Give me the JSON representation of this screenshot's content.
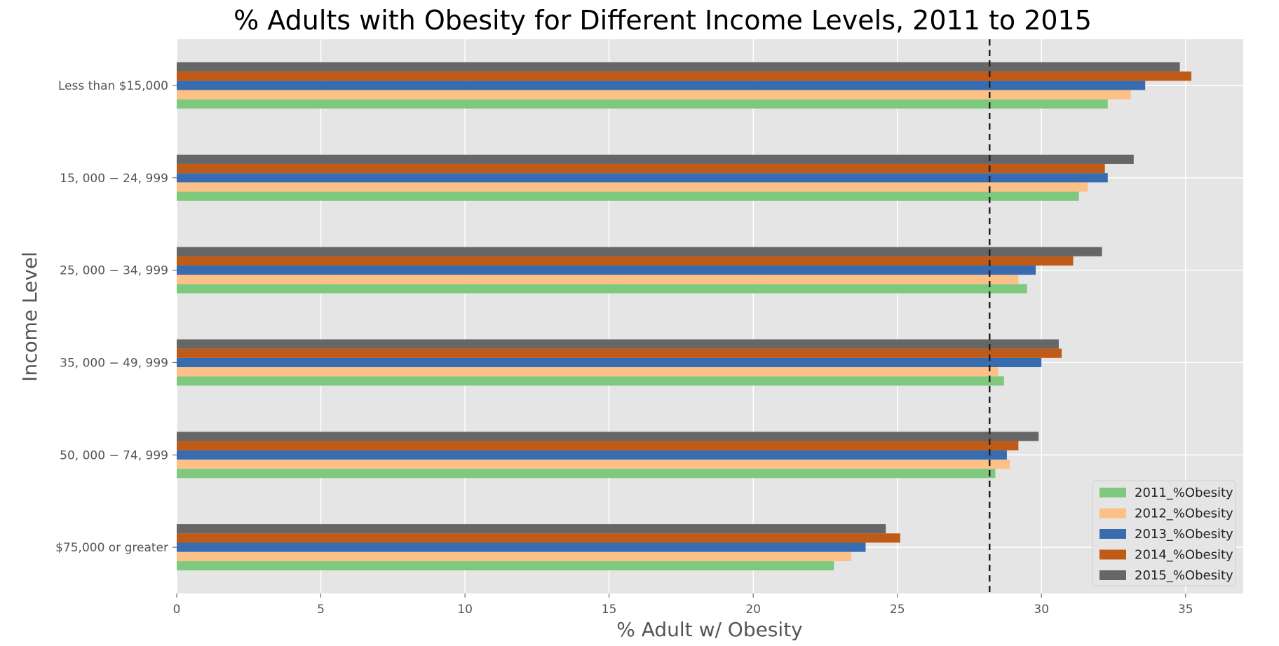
{
  "chart_data": {
    "type": "bar",
    "orientation": "horizontal",
    "title": "% Adults with Obesity for Different Income Levels, 2011 to 2015",
    "xlabel": "% Adult w/ Obesity",
    "ylabel": "Income Level",
    "xlim": [
      0,
      37
    ],
    "xticks": [
      "0",
      "5",
      "10",
      "15",
      "20",
      "25",
      "30",
      "35"
    ],
    "grid": true,
    "legend_position": "bottom-right",
    "categories": [
      "Less than $15,000",
      "$15,000 - $24,999",
      "$25,000 - $34,999",
      "$35,000 - $49,999",
      "$50,000 - $74,999",
      "$75,000 or greater"
    ],
    "category_labels": [
      "Less than $15,000",
      "15, 000 − 24, 999",
      "25, 000 − 34, 999",
      "35, 000 − 49, 999",
      "50, 000 − 74, 999",
      "$75,000 or greater"
    ],
    "series": [
      {
        "name": "2011_%Obesity",
        "color": "#7fc97f",
        "values": [
          32.3,
          31.3,
          29.5,
          28.7,
          28.4,
          22.8
        ]
      },
      {
        "name": "2012_%Obesity",
        "color": "#fdc086",
        "values": [
          33.1,
          31.6,
          29.2,
          28.5,
          28.9,
          23.4
        ]
      },
      {
        "name": "2013_%Obesity",
        "color": "#386cb0",
        "values": [
          33.6,
          32.3,
          29.8,
          30.0,
          28.8,
          23.9
        ]
      },
      {
        "name": "2014_%Obesity",
        "color": "#bf5b17",
        "values": [
          35.2,
          32.2,
          31.1,
          30.7,
          29.2,
          25.1
        ]
      },
      {
        "name": "2015_%Obesity",
        "color": "#666666",
        "values": [
          34.8,
          33.2,
          32.1,
          30.6,
          29.9,
          24.6
        ]
      }
    ],
    "reference_line": {
      "x": 28.2,
      "style": "dashed",
      "color": "#222222"
    }
  }
}
